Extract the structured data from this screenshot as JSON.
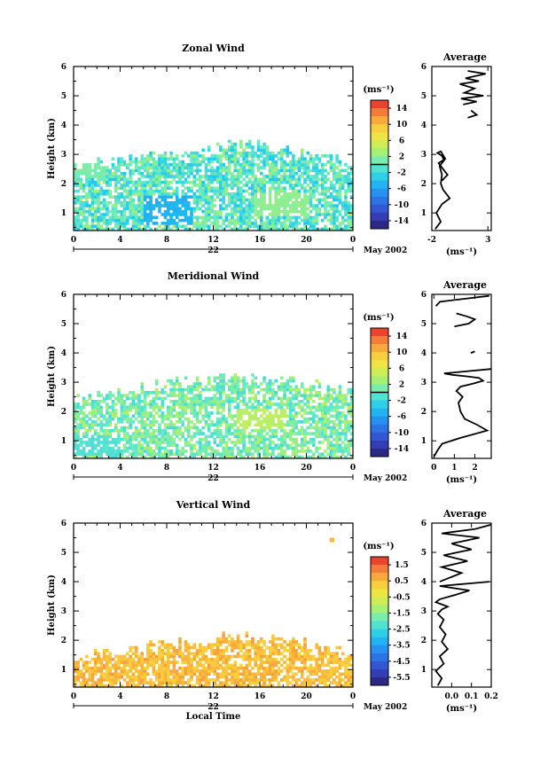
{
  "chart_data": [
    {
      "type": "heatmap",
      "title": "Zonal Wind",
      "ylabel": "Height (km)",
      "xticks": [
        "0",
        "4",
        "8",
        "12",
        "16",
        "20",
        "0"
      ],
      "yticks": [
        "1",
        "2",
        "3",
        "4",
        "5",
        "6"
      ],
      "xlim": [
        0,
        24
      ],
      "ylim": [
        0.4,
        6
      ],
      "date_label": "22",
      "month_label": "May 2002",
      "cbar_unit": "(ms⁻¹)",
      "cbar_ticks": [
        "14",
        "10",
        "6",
        "2",
        "-2",
        "-6",
        "-10",
        "-14"
      ],
      "cbar_range": [
        -16,
        16
      ],
      "cbar_zero": 0,
      "cells_range": [
        -4,
        3
      ],
      "max_height": 3.0,
      "coverage": 0.82,
      "hole_rate": 0.08,
      "patches": [
        {
          "x0": 6,
          "x1": 10,
          "y0": 0.6,
          "y1": 1.6,
          "value": -5
        },
        {
          "x0": 15.5,
          "x1": 20,
          "y0": 0.8,
          "y1": 1.7,
          "value": 2
        },
        {
          "x0": 0,
          "x1": 2.5,
          "y0": 2.2,
          "y1": 2.7,
          "value": 1
        }
      ],
      "profile": {
        "title": "Average",
        "xlabel": "(ms⁻¹)",
        "xticks": [
          "-2",
          "3"
        ],
        "xlim": [
          -2,
          3.3
        ],
        "ylim": [
          0.4,
          6
        ],
        "yticks": [
          "1",
          "2",
          "3",
          "4",
          "5",
          "6"
        ],
        "x": [
          -1.7,
          -1.2,
          -1.6,
          -1.1,
          -0.4,
          -1.0,
          -1.2,
          -1.1,
          -1.3,
          -0.9,
          -1.1,
          -1.5,
          -1.2,
          -0.8,
          -1.4,
          -1.0,
          -0.6,
          -1.1
        ],
        "y": [
          0.45,
          0.7,
          1.0,
          1.3,
          1.5,
          1.8,
          2.0,
          2.3,
          2.6,
          2.8,
          2.95,
          3.05,
          3.1,
          2.85,
          2.7,
          2.5,
          2.3,
          2.1
        ],
        "upper": [
          {
            "x": [
              0.8,
              2.0,
              0.6,
              2.6,
              0.9,
              1.8,
              0.5,
              2.2,
              1.0,
              2.8,
              1.2
            ],
            "y": [
              4.7,
              4.8,
              4.9,
              5.0,
              5.1,
              5.25,
              5.4,
              5.5,
              5.6,
              5.75,
              5.85
            ]
          },
          {
            "x": [
              1.2,
              2.0,
              1.5
            ],
            "y": [
              4.25,
              4.35,
              4.5
            ]
          }
        ]
      }
    },
    {
      "type": "heatmap",
      "title": "Meridional Wind",
      "ylabel": "Height (km)",
      "xticks": [
        "0",
        "4",
        "8",
        "12",
        "16",
        "20",
        "0"
      ],
      "yticks": [
        "1",
        "2",
        "3",
        "4",
        "5",
        "6"
      ],
      "xlim": [
        0,
        24
      ],
      "ylim": [
        0.4,
        6
      ],
      "date_label": "22",
      "month_label": "May 2002",
      "cbar_unit": "(ms⁻¹)",
      "cbar_ticks": [
        "14",
        "10",
        "6",
        "2",
        "-2",
        "-6",
        "-10",
        "-14"
      ],
      "cbar_range": [
        -16,
        16
      ],
      "cbar_zero": 0,
      "cells_range": [
        -2,
        4
      ],
      "max_height": 2.9,
      "coverage": 0.78,
      "hole_rate": 0.1,
      "patches": [
        {
          "x0": 14,
          "x1": 18,
          "y0": 1.4,
          "y1": 2.1,
          "value": 4
        },
        {
          "x0": 0,
          "x1": 4,
          "y0": 0.5,
          "y1": 1.1,
          "value": -1
        }
      ],
      "profile": {
        "title": "Average",
        "xlabel": "(ms⁻¹)",
        "xticks": [
          "0",
          "1",
          "2"
        ],
        "xlim": [
          -0.1,
          2.8
        ],
        "ylim": [
          0.4,
          6
        ],
        "yticks": [
          "1",
          "2",
          "3",
          "4",
          "5",
          "6"
        ],
        "x": [
          0.0,
          0.2,
          0.4,
          1.3,
          2.6,
          2.1,
          1.5,
          1.3,
          1.2,
          1.4,
          1.1,
          1.3,
          1.9,
          2.4,
          2.2,
          1.6,
          0.9,
          0.5,
          2.8
        ],
        "y": [
          0.45,
          0.7,
          0.9,
          1.1,
          1.35,
          1.55,
          1.75,
          2.0,
          2.3,
          2.5,
          2.7,
          2.85,
          2.95,
          3.05,
          3.15,
          3.2,
          3.25,
          3.3,
          3.45
        ],
        "upper": [
          {
            "x": [
              1.0,
              1.7,
              2.0,
              1.6,
              1.1
            ],
            "y": [
              4.9,
              5.0,
              5.15,
              5.25,
              5.35
            ]
          },
          {
            "x": [
              0.1,
              0.3,
              1.5,
              2.7
            ],
            "y": [
              5.6,
              5.75,
              5.85,
              5.95
            ]
          },
          {
            "x": [
              1.8,
              2.0
            ],
            "y": [
              4.0,
              4.05
            ]
          }
        ]
      }
    },
    {
      "type": "heatmap",
      "title": "Vertical Wind",
      "ylabel": "Height (km)",
      "xlabel": "Local Time",
      "xticks": [
        "0",
        "4",
        "8",
        "12",
        "16",
        "20",
        "0"
      ],
      "yticks": [
        "1",
        "2",
        "3",
        "4",
        "5",
        "6"
      ],
      "xlim": [
        0,
        24
      ],
      "ylim": [
        0.4,
        6
      ],
      "date_label": "22",
      "month_label": "May 2002",
      "cbar_unit": "(ms⁻¹)",
      "cbar_ticks": [
        "1.5",
        "0.5",
        "-0.5",
        "-1.5",
        "-2.5",
        "-3.5",
        "-4.5",
        "-5.5"
      ],
      "cbar_range": [
        -6,
        2
      ],
      "cbar_zero": null,
      "cells_range": [
        0.1,
        0.9
      ],
      "max_height": 1.8,
      "coverage": 0.85,
      "hole_rate": 0.1,
      "patches": [
        {
          "x0": 13,
          "x1": 17,
          "y0": 1.9,
          "y1": 2.2,
          "value": 0.5
        },
        {
          "x0": 22,
          "x1": 22.4,
          "y0": 5.35,
          "y1": 5.5,
          "value": 0.6
        }
      ],
      "profile": {
        "title": "Average",
        "xlabel": "(ms⁻¹)",
        "xticks": [
          "0.0",
          "0.1",
          "0.2"
        ],
        "xlim": [
          -0.1,
          0.2
        ],
        "ylim": [
          0.4,
          6
        ],
        "yticks": [
          "1",
          "2",
          "3",
          "4",
          "5",
          "6"
        ],
        "x": [
          -0.07,
          -0.05,
          -0.08,
          -0.04,
          -0.06,
          -0.02,
          -0.05,
          -0.03,
          -0.06,
          -0.04,
          -0.07,
          -0.05,
          -0.02,
          -0.04,
          -0.08,
          -0.06,
          0.02,
          0.09,
          -0.06,
          0.19
        ],
        "y": [
          0.45,
          0.7,
          0.95,
          1.2,
          1.45,
          1.7,
          1.95,
          2.2,
          2.45,
          2.7,
          2.9,
          3.05,
          3.15,
          3.2,
          3.3,
          3.4,
          3.55,
          3.7,
          3.85,
          4.0
        ],
        "upper": [
          {
            "x": [
              -0.06,
              0.05,
              -0.05,
              0.08,
              -0.04,
              0.1,
              0.0,
              0.14,
              -0.05,
              0.12,
              0.2
            ],
            "y": [
              4.0,
              4.3,
              4.5,
              4.7,
              4.9,
              5.1,
              5.3,
              5.5,
              5.65,
              5.8,
              5.95
            ]
          }
        ]
      }
    }
  ]
}
